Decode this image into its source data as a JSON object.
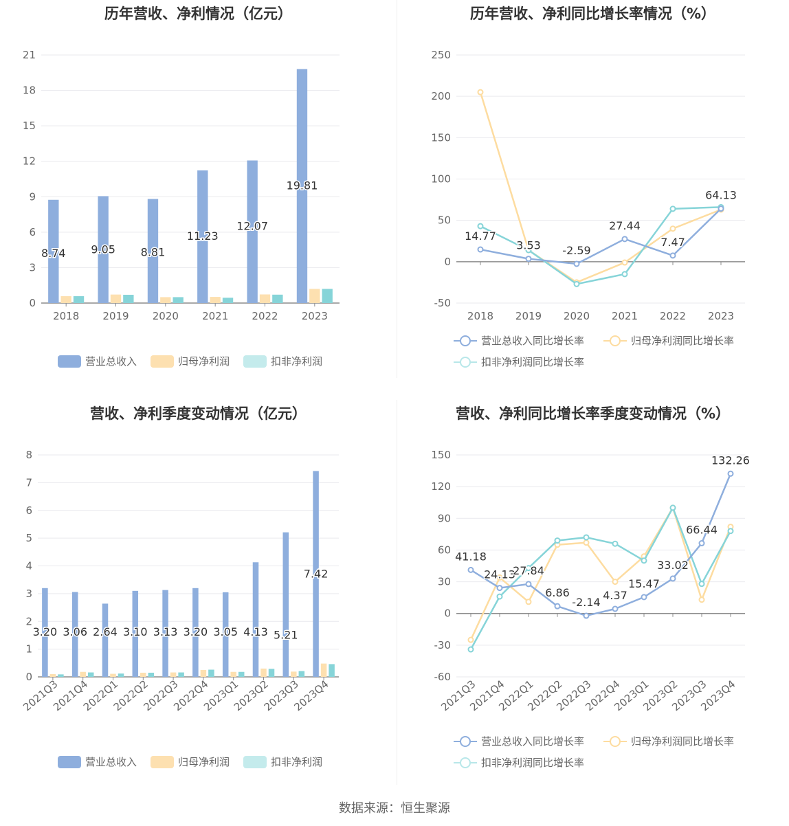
{
  "footer": {
    "source": "数据来源：恒生聚源"
  },
  "colors": {
    "revenue": "#8eaedd",
    "net": "#fde0b0",
    "deducted": "#86d4d8",
    "net_line": "#fddca0"
  },
  "chart_data": [
    {
      "id": "annual-amount",
      "type": "bar",
      "title": "历年营收、净利情况（亿元）",
      "categories": [
        "2018",
        "2019",
        "2020",
        "2021",
        "2022",
        "2023"
      ],
      "ylim": [
        0,
        21
      ],
      "yticks": [
        0,
        3,
        6,
        9,
        12,
        15,
        18,
        21
      ],
      "grid": true,
      "legend_position": "bottom",
      "series": [
        {
          "name": "营业总收入",
          "values": [
            8.74,
            9.05,
            8.81,
            11.23,
            12.07,
            19.81
          ],
          "labels": [
            "8.74",
            "9.05",
            "8.81",
            "11.23",
            "12.07",
            "19.81"
          ]
        },
        {
          "name": "归母净利润",
          "values": [
            0.58,
            0.72,
            0.5,
            0.52,
            0.73,
            1.2
          ]
        },
        {
          "name": "扣非净利润",
          "values": [
            0.58,
            0.7,
            0.5,
            0.45,
            0.71,
            1.2
          ]
        }
      ]
    },
    {
      "id": "annual-growth",
      "type": "line",
      "title": "历年营收、净利同比增长率情况（%）",
      "categories": [
        "2018",
        "2019",
        "2020",
        "2021",
        "2022",
        "2023"
      ],
      "ylim": [
        -50,
        250
      ],
      "yticks": [
        -50,
        0,
        50,
        100,
        150,
        200,
        250
      ],
      "grid": true,
      "legend_position": "bottom",
      "series": [
        {
          "name": "营业总收入同比增长率",
          "values": [
            14.77,
            3.53,
            -2.59,
            27.44,
            7.47,
            64.13
          ],
          "labels": [
            "14.77",
            "3.53",
            "-2.59",
            "27.44",
            "7.47",
            "64.13"
          ]
        },
        {
          "name": "归母净利润同比增长率",
          "values": [
            205,
            14,
            -25,
            -1,
            40,
            63
          ]
        },
        {
          "name": "扣非净利润同比增长率",
          "values": [
            43,
            14,
            -27,
            -15,
            64,
            66
          ]
        }
      ]
    },
    {
      "id": "quarter-amount",
      "type": "bar",
      "title": "营收、净利季度变动情况（亿元）",
      "categories": [
        "2021Q3",
        "2021Q4",
        "2022Q1",
        "2022Q2",
        "2022Q3",
        "2022Q4",
        "2023Q1",
        "2023Q2",
        "2023Q3",
        "2023Q4"
      ],
      "ylim": [
        0,
        8
      ],
      "yticks": [
        0,
        1,
        2,
        3,
        4,
        5,
        6,
        7,
        8
      ],
      "grid": true,
      "legend_position": "bottom",
      "series": [
        {
          "name": "营业总收入",
          "values": [
            3.2,
            3.06,
            2.64,
            3.1,
            3.13,
            3.2,
            3.05,
            4.13,
            5.21,
            7.42
          ],
          "labels": [
            "3.20",
            "3.06",
            "2.64",
            "3.10",
            "3.13",
            "3.20",
            "3.05",
            "4.13",
            "5.21",
            "7.42"
          ]
        },
        {
          "name": "归母净利润",
          "values": [
            0.1,
            0.18,
            0.11,
            0.15,
            0.16,
            0.25,
            0.18,
            0.3,
            0.19,
            0.48
          ]
        },
        {
          "name": "扣非净利润",
          "values": [
            0.09,
            0.16,
            0.12,
            0.15,
            0.16,
            0.26,
            0.18,
            0.29,
            0.21,
            0.46
          ]
        }
      ]
    },
    {
      "id": "quarter-growth",
      "type": "line",
      "title": "营收、净利同比增长率季度变动情况（%）",
      "categories": [
        "2021Q3",
        "2021Q4",
        "2022Q1",
        "2022Q2",
        "2022Q3",
        "2022Q4",
        "2023Q1",
        "2023Q2",
        "2023Q3",
        "2023Q4"
      ],
      "ylim": [
        -60,
        150
      ],
      "yticks": [
        -60,
        -30,
        0,
        30,
        60,
        90,
        120,
        150
      ],
      "grid": true,
      "legend_position": "bottom",
      "series": [
        {
          "name": "营业总收入同比增长率",
          "values": [
            41.18,
            24.13,
            27.84,
            6.86,
            -2.14,
            4.37,
            15.47,
            33.02,
            66.44,
            132.26
          ],
          "labels": [
            "41.18",
            "24.13",
            "27.84",
            "6.86",
            "-2.14",
            "4.37",
            "15.47",
            "33.02",
            "66.44",
            "132.26"
          ]
        },
        {
          "name": "归母净利润同比增长率",
          "values": [
            -25,
            34,
            11,
            65,
            67,
            30,
            54,
            100,
            13,
            82
          ]
        },
        {
          "name": "扣非净利润同比增长率",
          "values": [
            -34,
            16,
            43,
            69,
            72,
            66,
            50,
            100,
            28,
            78
          ]
        }
      ]
    }
  ]
}
